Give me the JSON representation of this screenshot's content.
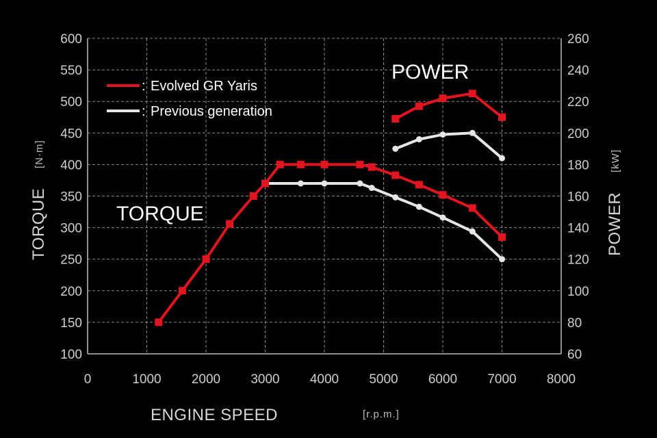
{
  "chart_data": {
    "type": "line",
    "xlabel": "ENGINE SPEED",
    "xunit": "[r.p.m.]",
    "ylabel_left": "TORQUE",
    "ylabel_left_unit": "[N·m]",
    "ylabel_right": "POWER",
    "ylabel_right_unit": "[kW]",
    "xlim": [
      0,
      8000
    ],
    "ylim_left": [
      100,
      600
    ],
    "ylim_right": [
      60,
      260
    ],
    "xticks": [
      "0",
      "1000",
      "2000",
      "3000",
      "4000",
      "5000",
      "6000",
      "7000",
      "8000"
    ],
    "yticks_left": [
      "100",
      "150",
      "200",
      "250",
      "300",
      "350",
      "400",
      "450",
      "500",
      "550",
      "600"
    ],
    "yticks_right": [
      "60",
      "80",
      "100",
      "120",
      "140",
      "160",
      "180",
      "200",
      "220",
      "240",
      "260"
    ],
    "grid": true,
    "legend_position": "top-left",
    "annotations": {
      "torque": "TORQUE",
      "power": "POWER"
    },
    "series": [
      {
        "name": "Evolved GR Yaris",
        "color": "#e0151f",
        "marker": "square",
        "torque": {
          "x": [
            1200,
            1600,
            2000,
            2400,
            2800,
            3000,
            3250,
            3600,
            4000,
            4600,
            4800,
            5200,
            5600,
            6000,
            6500,
            7000
          ],
          "y": [
            150,
            200,
            250,
            306,
            350,
            370,
            400,
            400,
            400,
            400,
            396,
            383,
            368,
            352,
            331,
            285
          ]
        },
        "power": {
          "x": [
            5200,
            5600,
            6000,
            6500,
            7000
          ],
          "y": [
            209,
            217,
            222,
            225,
            210
          ]
        }
      },
      {
        "name": "Previous generation",
        "color": "#e6e6e6",
        "marker": "circle",
        "torque": {
          "x": [
            3000,
            3600,
            4000,
            4600,
            4800,
            5200,
            5600,
            6000,
            6500,
            7000
          ],
          "y": [
            370,
            370,
            370,
            370,
            363,
            348,
            333,
            316,
            294,
            250
          ]
        },
        "power": {
          "x": [
            5200,
            5600,
            6000,
            6500,
            7000
          ],
          "y": [
            190,
            196,
            199,
            200,
            184
          ]
        }
      }
    ]
  }
}
